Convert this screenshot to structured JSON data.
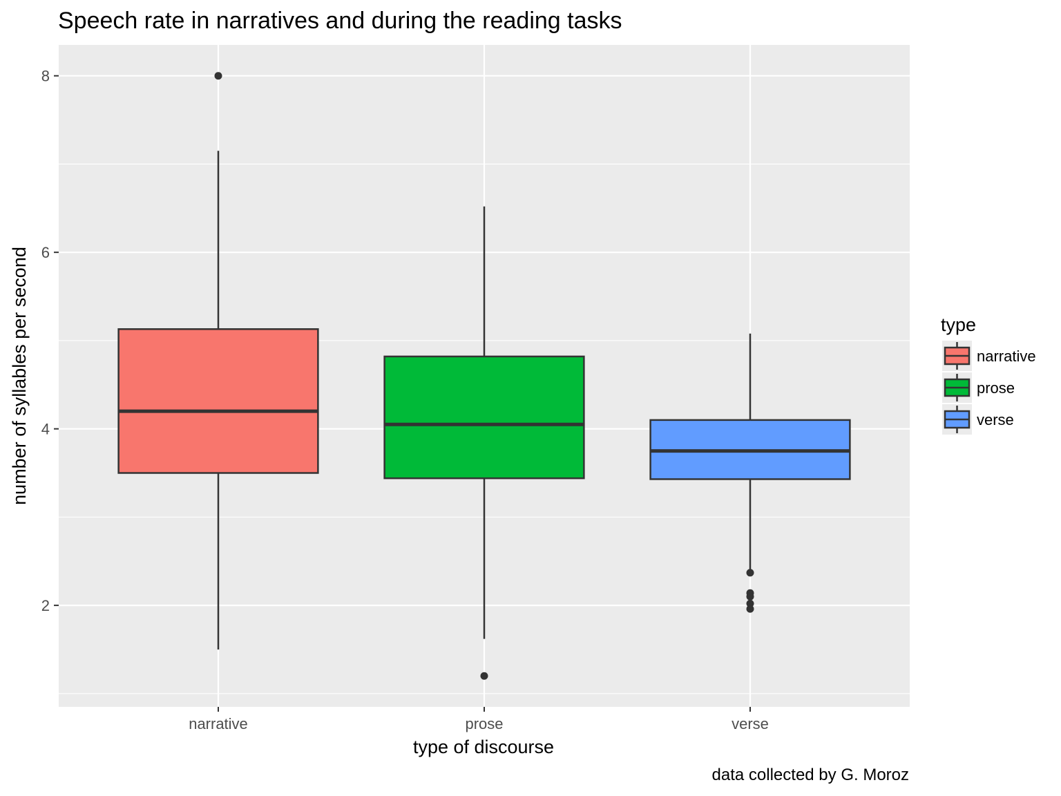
{
  "chart_data": {
    "type": "boxplot",
    "title": "Speech rate in narratives and during the reading tasks",
    "xlabel": "type of discourse",
    "ylabel": "number of syllables per second",
    "caption": "data collected by G. Moroz",
    "ylim": [
      0.85,
      8.35
    ],
    "y_ticks": [
      2,
      4,
      6,
      8
    ],
    "grid": true,
    "legend": {
      "title": "type",
      "placement": "right",
      "entries": [
        "narrative",
        "prose",
        "verse"
      ]
    },
    "categories": [
      "narrative",
      "prose",
      "verse"
    ],
    "boxes": [
      {
        "name": "narrative",
        "color": "#F8766D",
        "whisker_low": 1.5,
        "q1": 3.5,
        "median": 4.2,
        "q3": 5.13,
        "whisker_high": 7.15,
        "outliers": [
          8.0
        ]
      },
      {
        "name": "prose",
        "color": "#00BA38",
        "whisker_low": 1.62,
        "q1": 3.44,
        "median": 4.05,
        "q3": 4.82,
        "whisker_high": 6.52,
        "outliers": [
          1.2
        ]
      },
      {
        "name": "verse",
        "color": "#619CFF",
        "whisker_low": 2.4,
        "q1": 3.43,
        "median": 3.75,
        "q3": 4.1,
        "whisker_high": 5.08,
        "outliers": [
          2.37,
          2.14,
          2.1,
          2.02,
          1.96
        ]
      }
    ]
  }
}
